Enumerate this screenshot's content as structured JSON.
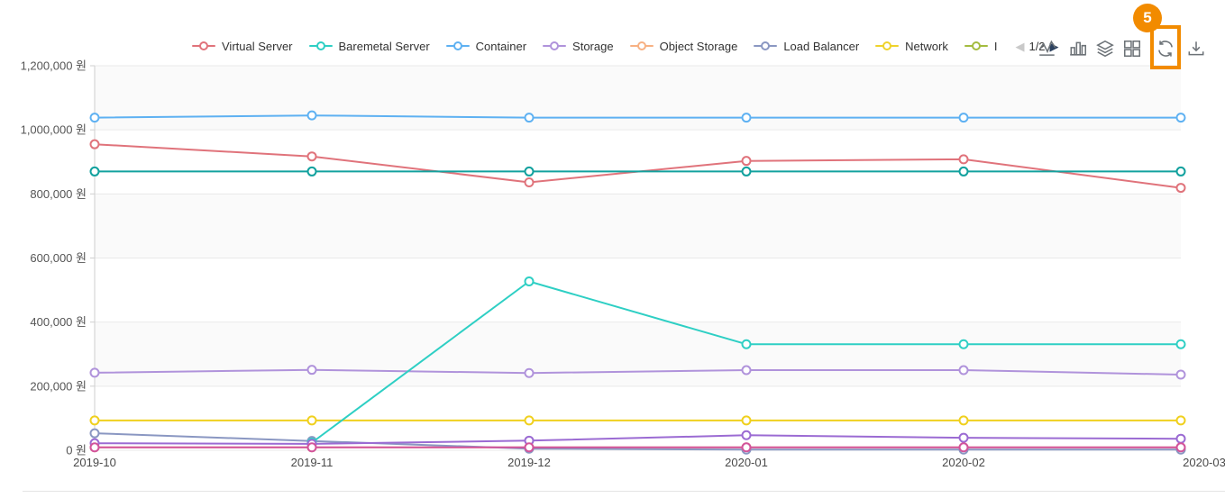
{
  "legend": {
    "items": [
      {
        "label": "Virtual Server",
        "color": "#e0737b"
      },
      {
        "label": "Baremetal Server",
        "color": "#2ecfc4"
      },
      {
        "label": "Container",
        "color": "#5eb1f2"
      },
      {
        "label": "Storage",
        "color": "#b093db"
      },
      {
        "label": "Object Storage",
        "color": "#f7b183"
      },
      {
        "label": "Load Balancer",
        "color": "#8a97c2"
      },
      {
        "label": "Network",
        "color": "#efd32b"
      },
      {
        "label": "I",
        "color": "#a4bc3f"
      }
    ],
    "page": "1/2",
    "prev_icon": "◀",
    "next_icon": "▶"
  },
  "toolbar": {
    "icons": [
      "line-chart",
      "bar-chart",
      "stack",
      "tiled",
      "refresh",
      "download"
    ],
    "highlighted_icon": "refresh",
    "badge": "5",
    "accent_color": "#f28b00"
  },
  "chart_data": {
    "type": "line",
    "x_categories": [
      "2019-10",
      "2019-11",
      "2019-12",
      "2020-01",
      "2020-02",
      "2020-03"
    ],
    "y_ticks": [
      {
        "value": 0,
        "label": "0 원"
      },
      {
        "value": 200000,
        "label": "200,000 원"
      },
      {
        "value": 400000,
        "label": "400,000 원"
      },
      {
        "value": 600000,
        "label": "600,000 원"
      },
      {
        "value": 800000,
        "label": "800,000 원"
      },
      {
        "value": 1000000,
        "label": "1,000,000 원"
      },
      {
        "value": 1200000,
        "label": "1,200,000 원"
      }
    ],
    "y_min": 0,
    "y_max": 1200000,
    "grid": true,
    "legend_position": "top",
    "series": [
      {
        "name": "Object Storage",
        "color": "#f7b183",
        "values": [
          9000,
          9000,
          9000,
          9000,
          9000,
          9000
        ]
      },
      {
        "name": "Load Balancer",
        "color": "#8a97c2",
        "values": [
          53000,
          29000,
          5000,
          2000,
          2000,
          2000
        ]
      },
      {
        "name": "Storage",
        "color": "#b093db",
        "values": [
          242000,
          251000,
          241000,
          250000,
          250000,
          236000
        ]
      },
      {
        "name": "Network",
        "color": "#f0d01e",
        "values": [
          93000,
          93000,
          93000,
          93000,
          93000,
          93000
        ]
      },
      {
        "name": "Baremetal Server",
        "color": "#2ecfc4",
        "values": [
          null,
          24000,
          527000,
          331000,
          331000,
          331000
        ]
      },
      {
        "name": "",
        "color": "#9b6bd3",
        "values": [
          22000,
          20000,
          30000,
          47000,
          39000,
          36000
        ]
      },
      {
        "name": "",
        "color": "#d2549b",
        "values": [
          9000,
          9000,
          9000,
          9000,
          9000,
          9000
        ]
      },
      {
        "name": "Virtual Server",
        "color": "#e0737b",
        "values": [
          955000,
          917000,
          836000,
          903000,
          908000,
          819000
        ]
      },
      {
        "name": "",
        "color": "#12a19e",
        "values": [
          870000,
          870000,
          870000,
          870000,
          870000,
          870000
        ]
      },
      {
        "name": "Container",
        "color": "#5eb1f2",
        "values": [
          1038000,
          1045000,
          1038000,
          1038000,
          1038000,
          1038000
        ]
      }
    ]
  }
}
